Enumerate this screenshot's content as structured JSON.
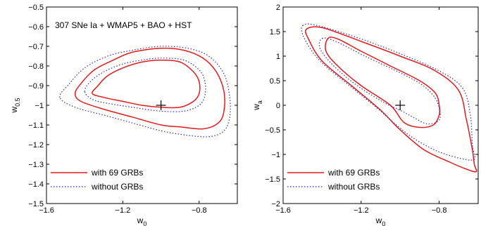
{
  "chart_data": [
    {
      "type": "contour",
      "annotation": "307 SNe Ia + WMAP5 + BAO + HST",
      "xlabel": "w",
      "xlabel_sub": "0",
      "ylabel": "w",
      "ylabel_sub": "0.5",
      "xlim": [
        -1.6,
        -0.6
      ],
      "ylim": [
        -1.5,
        -0.5
      ],
      "xticks": [
        -1.6,
        -1.2,
        -0.8
      ],
      "xtick_labels": [
        "−1.6",
        "−1.2",
        "−0.8"
      ],
      "yticks": [
        -1.5,
        -1.4,
        -1.3,
        -1.2,
        -1.1,
        -1.0,
        -0.9,
        -0.8,
        -0.7,
        -0.6,
        -0.5
      ],
      "ytick_labels": [
        "−1.5",
        "−1.4",
        "−1.3",
        "−1.2",
        "−1.1",
        "−1",
        "−0.9",
        "−0.8",
        "−0.7",
        "−0.6",
        "−0.5"
      ],
      "grid": false,
      "legend_position": "bottom-left",
      "best_fit": [
        -1.0,
        -1.0
      ],
      "series": [
        {
          "name": "with 69 GRBs",
          "color": "#e31a1c",
          "style": "solid",
          "contours": [
            [
              [
                -1.36,
                -0.94
              ],
              [
                -1.33,
                -0.9
              ],
              [
                -1.28,
                -0.85
              ],
              [
                -1.2,
                -0.81
              ],
              [
                -1.1,
                -0.78
              ],
              [
                -1.0,
                -0.77
              ],
              [
                -0.9,
                -0.78
              ],
              [
                -0.83,
                -0.83
              ],
              [
                -0.8,
                -0.88
              ],
              [
                -0.8,
                -0.94
              ],
              [
                -0.83,
                -0.98
              ],
              [
                -0.9,
                -1.01
              ],
              [
                -1.0,
                -1.01
              ],
              [
                -1.1,
                -1.0
              ],
              [
                -1.2,
                -0.98
              ],
              [
                -1.3,
                -0.96
              ]
            ],
            [
              [
                -1.45,
                -0.94
              ],
              [
                -1.42,
                -0.89
              ],
              [
                -1.35,
                -0.82
              ],
              [
                -1.25,
                -0.77
              ],
              [
                -1.15,
                -0.73
              ],
              [
                -1.0,
                -0.71
              ],
              [
                -0.88,
                -0.72
              ],
              [
                -0.78,
                -0.76
              ],
              [
                -0.71,
                -0.83
              ],
              [
                -0.67,
                -0.93
              ],
              [
                -0.67,
                -1.03
              ],
              [
                -0.7,
                -1.09
              ],
              [
                -0.78,
                -1.12
              ],
              [
                -0.9,
                -1.11
              ],
              [
                -1.0,
                -1.1
              ],
              [
                -1.15,
                -1.06
              ],
              [
                -1.3,
                -1.02
              ],
              [
                -1.42,
                -0.98
              ]
            ]
          ]
        },
        {
          "name": "without GRBs",
          "color": "#2b2bd6",
          "style": "dotted",
          "contours": [
            [
              [
                -1.4,
                -0.93
              ],
              [
                -1.37,
                -0.88
              ],
              [
                -1.3,
                -0.83
              ],
              [
                -1.2,
                -0.79
              ],
              [
                -1.1,
                -0.77
              ],
              [
                -1.0,
                -0.76
              ],
              [
                -0.88,
                -0.77
              ],
              [
                -0.8,
                -0.82
              ],
              [
                -0.77,
                -0.88
              ],
              [
                -0.77,
                -0.95
              ],
              [
                -0.8,
                -1.0
              ],
              [
                -0.88,
                -1.03
              ],
              [
                -1.0,
                -1.03
              ],
              [
                -1.15,
                -1.01
              ],
              [
                -1.28,
                -0.99
              ],
              [
                -1.36,
                -0.97
              ]
            ],
            [
              [
                -1.53,
                -0.96
              ],
              [
                -1.48,
                -0.89
              ],
              [
                -1.4,
                -0.81
              ],
              [
                -1.28,
                -0.75
              ],
              [
                -1.15,
                -0.72
              ],
              [
                -1.0,
                -0.7
              ],
              [
                -0.86,
                -0.71
              ],
              [
                -0.75,
                -0.75
              ],
              [
                -0.67,
                -0.84
              ],
              [
                -0.64,
                -0.96
              ],
              [
                -0.64,
                -1.06
              ],
              [
                -0.67,
                -1.13
              ],
              [
                -0.75,
                -1.16
              ],
              [
                -0.88,
                -1.15
              ],
              [
                -1.0,
                -1.13
              ],
              [
                -1.15,
                -1.09
              ],
              [
                -1.3,
                -1.05
              ],
              [
                -1.45,
                -1.01
              ]
            ]
          ]
        }
      ]
    },
    {
      "type": "contour",
      "annotation": "",
      "xlabel": "w",
      "xlabel_sub": "0",
      "ylabel": "w",
      "ylabel_sub": "a",
      "xlim": [
        -1.6,
        -0.6
      ],
      "ylim": [
        -2,
        2
      ],
      "xticks": [
        -1.6,
        -1.2,
        -0.8
      ],
      "xtick_labels": [
        "−1.6",
        "−1.2",
        "−0.8"
      ],
      "yticks": [
        -2,
        -1.5,
        -1,
        -0.5,
        0,
        0.5,
        1,
        1.5,
        2
      ],
      "ytick_labels": [
        "−2",
        "−1.5",
        "−1",
        "−0.5",
        "0",
        "0.5",
        "1",
        "1.5",
        "2"
      ],
      "grid": false,
      "legend_position": "bottom-left",
      "best_fit": [
        -1.0,
        0.0
      ],
      "series": [
        {
          "name": "with 69 GRBs",
          "color": "#e31a1c",
          "style": "solid",
          "contours": [
            [
              [
                -1.37,
                1.36
              ],
              [
                -1.32,
                1.35
              ],
              [
                -1.2,
                1.1
              ],
              [
                -1.05,
                0.8
              ],
              [
                -0.9,
                0.5
              ],
              [
                -0.82,
                0.25
              ],
              [
                -0.8,
                0.0
              ],
              [
                -0.8,
                -0.2
              ],
              [
                -0.83,
                -0.4
              ],
              [
                -0.9,
                -0.45
              ],
              [
                -0.98,
                -0.35
              ],
              [
                -1.05,
                0.0
              ],
              [
                -1.2,
                0.4
              ],
              [
                -1.32,
                0.8
              ],
              [
                -1.38,
                1.1
              ]
            ],
            [
              [
                -1.48,
                1.55
              ],
              [
                -1.4,
                1.58
              ],
              [
                -1.2,
                1.3
              ],
              [
                -1.0,
                1.0
              ],
              [
                -0.82,
                0.7
              ],
              [
                -0.7,
                0.3
              ],
              [
                -0.66,
                -0.3
              ],
              [
                -0.63,
                -0.9
              ],
              [
                -0.62,
                -1.2
              ],
              [
                -0.61,
                -1.35
              ],
              [
                -0.66,
                -1.3
              ],
              [
                -0.75,
                -1.15
              ],
              [
                -0.88,
                -0.9
              ],
              [
                -1.0,
                -0.5
              ],
              [
                -1.1,
                -0.1
              ],
              [
                -1.25,
                0.4
              ],
              [
                -1.4,
                0.9
              ],
              [
                -1.47,
                1.35
              ]
            ]
          ]
        },
        {
          "name": "without GRBs",
          "color": "#2b2bd6",
          "style": "dotted",
          "contours": [
            [
              [
                -1.4,
                1.36
              ],
              [
                -1.33,
                1.3
              ],
              [
                -1.18,
                1.0
              ],
              [
                -1.02,
                0.7
              ],
              [
                -0.9,
                0.45
              ],
              [
                -0.83,
                0.2
              ],
              [
                -0.8,
                -0.05
              ],
              [
                -0.8,
                -0.3
              ],
              [
                -0.86,
                -0.38
              ],
              [
                -0.93,
                -0.25
              ],
              [
                -1.0,
                -0.1
              ],
              [
                -1.08,
                0.05
              ],
              [
                -1.22,
                0.4
              ],
              [
                -1.34,
                0.8
              ],
              [
                -1.41,
                1.15
              ]
            ],
            [
              [
                -1.5,
                1.62
              ],
              [
                -1.42,
                1.62
              ],
              [
                -1.2,
                1.35
              ],
              [
                -1.0,
                1.05
              ],
              [
                -0.8,
                0.7
              ],
              [
                -0.68,
                0.35
              ],
              [
                -0.64,
                -0.2
              ],
              [
                -0.63,
                -0.8
              ],
              [
                -0.62,
                -1.0
              ],
              [
                -0.62,
                -1.1
              ],
              [
                -0.67,
                -1.1
              ],
              [
                -0.8,
                -0.95
              ],
              [
                -0.92,
                -0.7
              ],
              [
                -1.02,
                -0.4
              ],
              [
                -1.12,
                -0.05
              ],
              [
                -1.26,
                0.4
              ],
              [
                -1.41,
                0.9
              ],
              [
                -1.49,
                1.35
              ]
            ]
          ]
        }
      ]
    }
  ]
}
